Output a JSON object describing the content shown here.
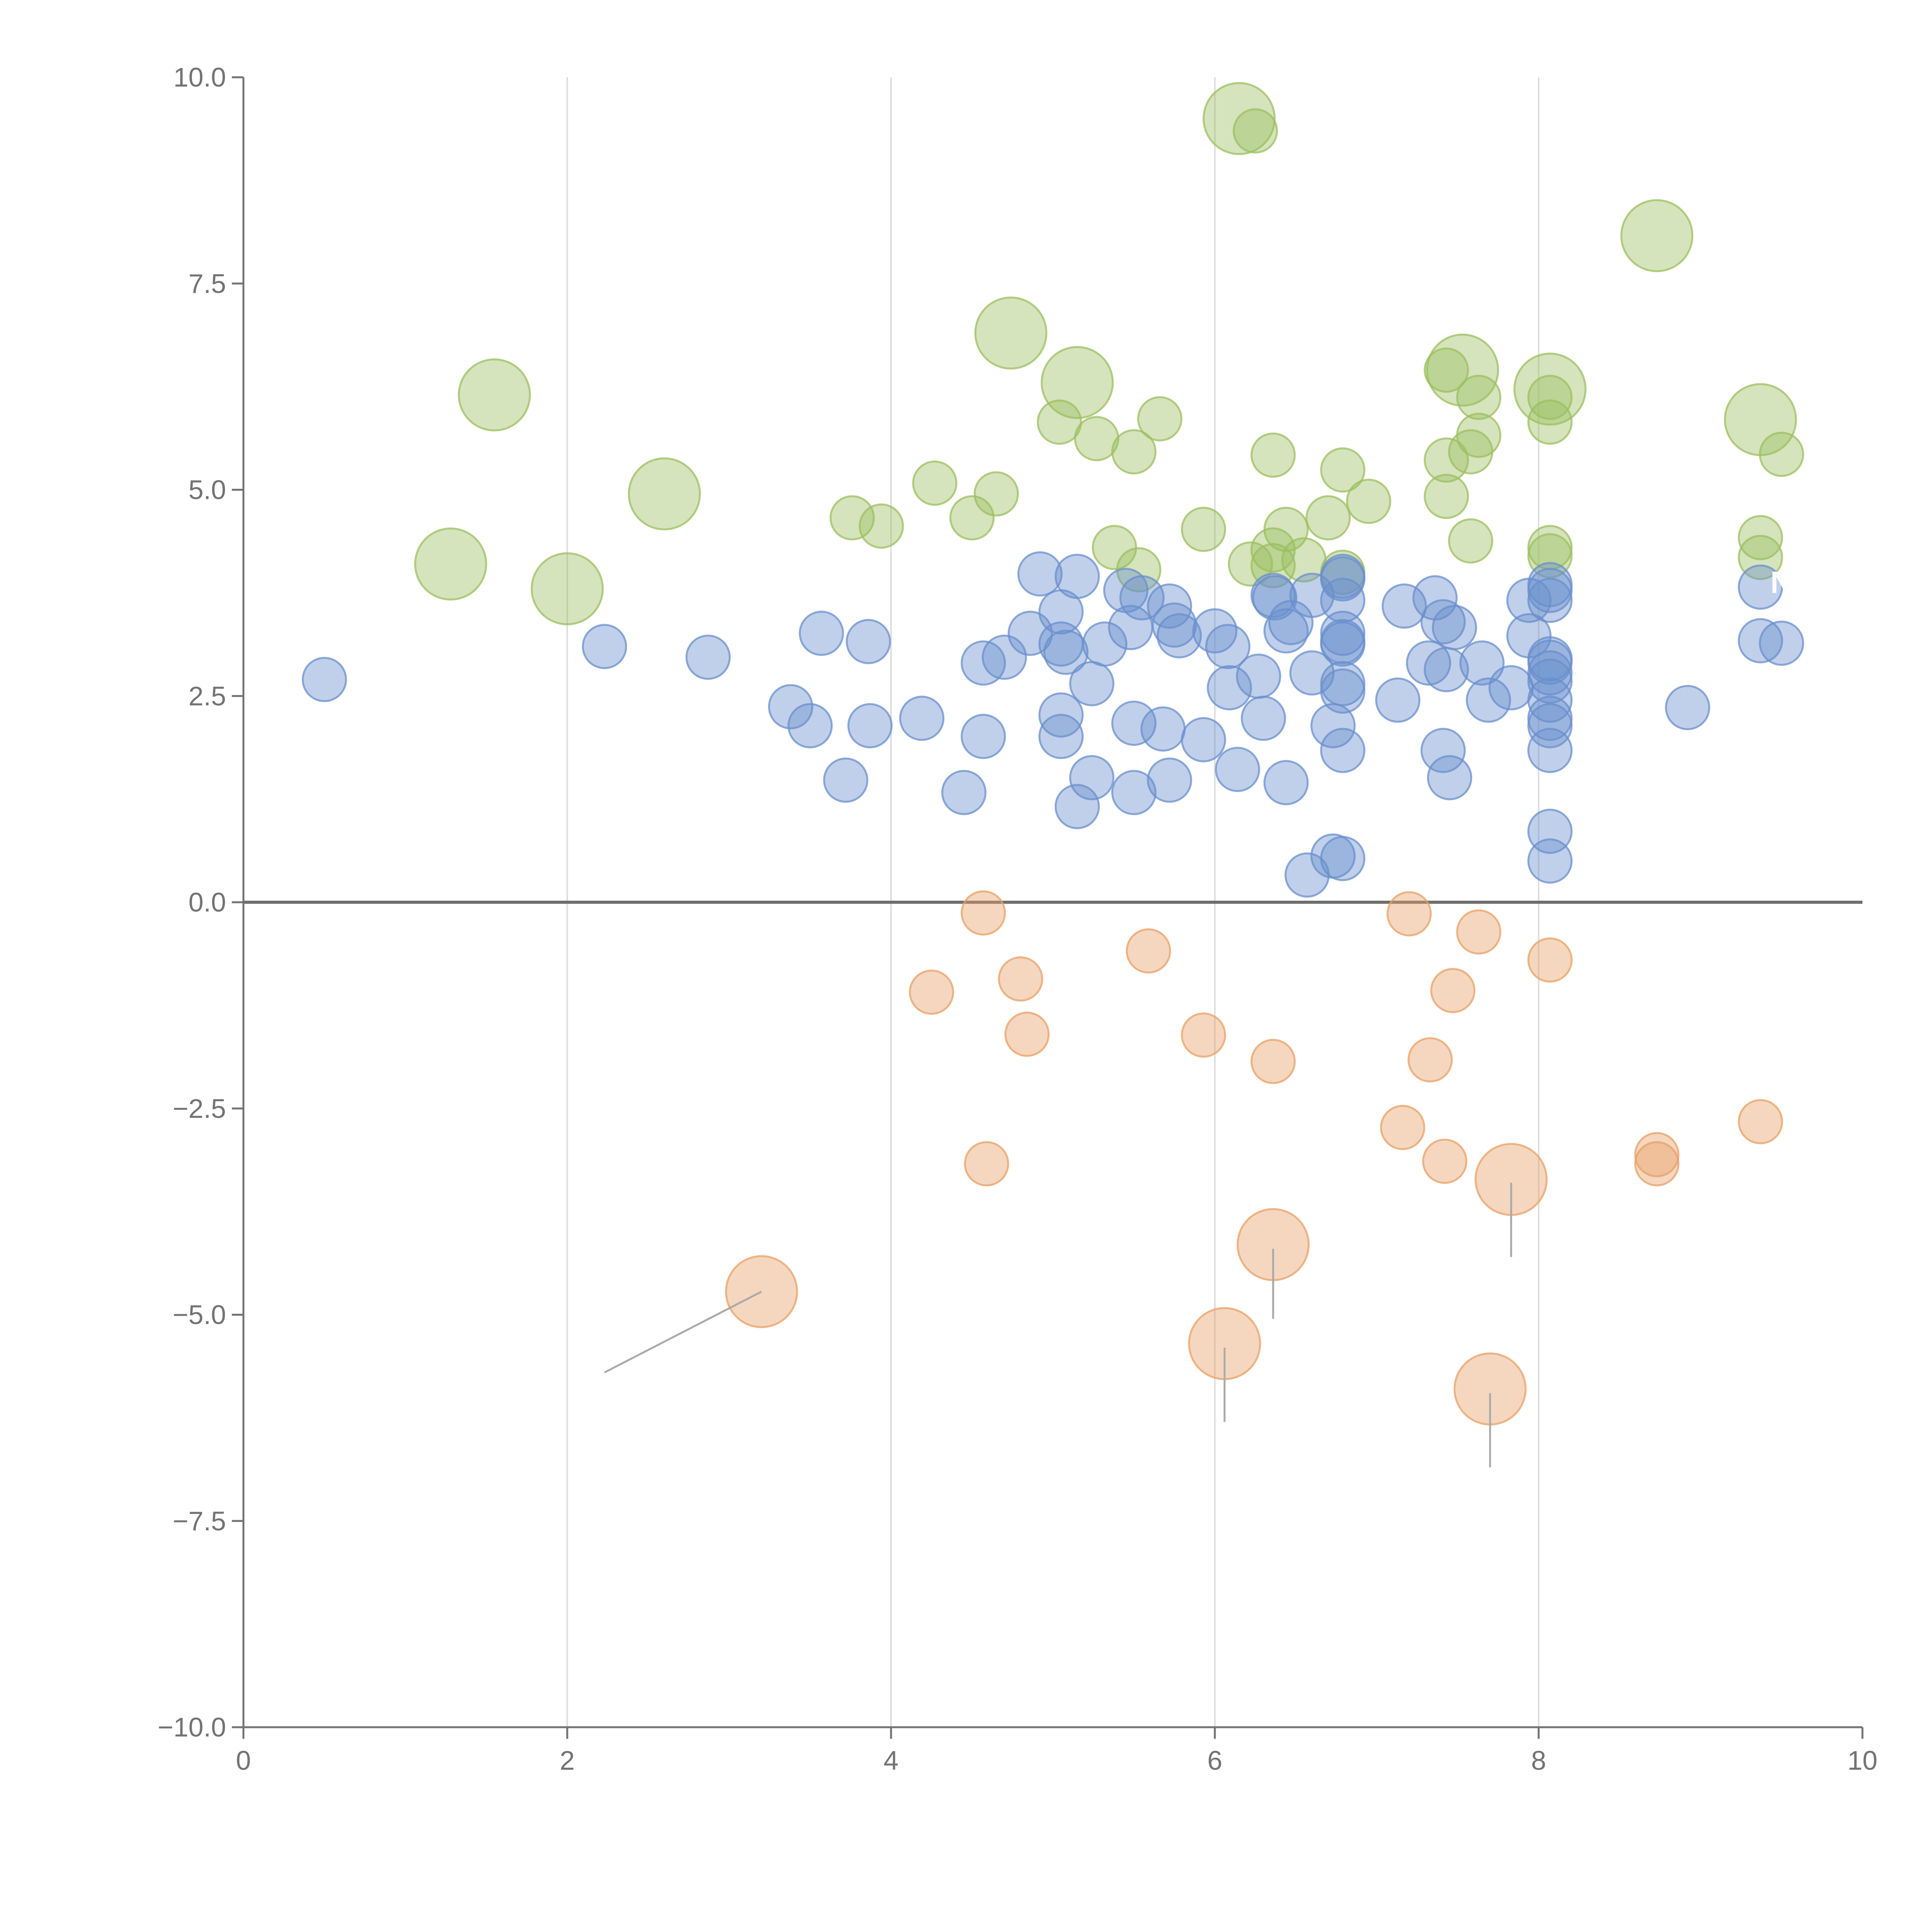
{
  "chart_data": {
    "type": "scatter",
    "title": "",
    "xlabel": "",
    "ylabel": "",
    "xlim": [
      0,
      10
    ],
    "ylim": [
      -10,
      10
    ],
    "x_ticks": [
      0,
      2,
      4,
      6,
      8,
      10
    ],
    "x_tick_labels": [
      "0",
      "2",
      "4",
      "6",
      "8",
      "10"
    ],
    "y_ticks": [
      -10,
      -7.5,
      -5,
      -2.5,
      0,
      2.5,
      5,
      7.5,
      10
    ],
    "y_tick_labels": [
      "−10.0",
      "−7.5",
      "−5.0",
      "−2.5",
      "0.0",
      "2.5",
      "5.0",
      "7.5",
      "10.0"
    ],
    "vertical_gridlines_at": [
      2,
      4,
      6,
      8
    ],
    "zero_line": 0,
    "colors": {
      "green": "#9bbf5f",
      "blue": "#6a8fcc",
      "orange": "#e8a066",
      "axis": "#737373",
      "grid": "#dddddd"
    },
    "annotations": [
      {
        "text": "N",
        "x": 9.5,
        "y": 3.75,
        "color": "#ffffff"
      }
    ],
    "series": [
      {
        "name": "green",
        "color": "#9bbf5f",
        "points": [
          {
            "x": 6.15,
            "y": 9.5,
            "s": 2
          },
          {
            "x": 6.25,
            "y": 9.35,
            "s": 1
          },
          {
            "x": 8.73,
            "y": 8.08,
            "s": 2
          },
          {
            "x": 4.74,
            "y": 6.9,
            "s": 2
          },
          {
            "x": 1.55,
            "y": 6.15,
            "s": 2
          },
          {
            "x": 5.15,
            "y": 6.3,
            "s": 2
          },
          {
            "x": 7.53,
            "y": 6.45,
            "s": 2
          },
          {
            "x": 8.07,
            "y": 6.22,
            "s": 2
          },
          {
            "x": 9.37,
            "y": 5.85,
            "s": 2
          },
          {
            "x": 2.6,
            "y": 4.95,
            "s": 2
          },
          {
            "x": 1.28,
            "y": 4.1,
            "s": 2
          },
          {
            "x": 2.0,
            "y": 3.8,
            "s": 2
          },
          {
            "x": 7.43,
            "y": 6.45,
            "s": 1
          },
          {
            "x": 7.63,
            "y": 6.12,
            "s": 1
          },
          {
            "x": 8.07,
            "y": 6.12,
            "s": 1
          },
          {
            "x": 8.07,
            "y": 5.82,
            "s": 1
          },
          {
            "x": 5.04,
            "y": 5.82,
            "s": 1
          },
          {
            "x": 5.27,
            "y": 5.62,
            "s": 1
          },
          {
            "x": 5.5,
            "y": 5.46,
            "s": 1
          },
          {
            "x": 5.66,
            "y": 5.86,
            "s": 1
          },
          {
            "x": 7.63,
            "y": 5.66,
            "s": 1
          },
          {
            "x": 7.58,
            "y": 5.46,
            "s": 1
          },
          {
            "x": 7.43,
            "y": 5.36,
            "s": 1
          },
          {
            "x": 6.36,
            "y": 5.42,
            "s": 1
          },
          {
            "x": 6.79,
            "y": 5.24,
            "s": 1
          },
          {
            "x": 9.5,
            "y": 5.43,
            "s": 1
          },
          {
            "x": 4.27,
            "y": 5.08,
            "s": 1
          },
          {
            "x": 4.65,
            "y": 4.95,
            "s": 1
          },
          {
            "x": 3.76,
            "y": 4.66,
            "s": 1
          },
          {
            "x": 3.94,
            "y": 4.56,
            "s": 1
          },
          {
            "x": 4.5,
            "y": 4.66,
            "s": 1
          },
          {
            "x": 7.43,
            "y": 4.92,
            "s": 1
          },
          {
            "x": 6.95,
            "y": 4.86,
            "s": 1
          },
          {
            "x": 6.7,
            "y": 4.66,
            "s": 1
          },
          {
            "x": 5.93,
            "y": 4.52,
            "s": 1
          },
          {
            "x": 6.44,
            "y": 4.52,
            "s": 1
          },
          {
            "x": 7.58,
            "y": 4.38,
            "s": 1
          },
          {
            "x": 5.38,
            "y": 4.3,
            "s": 1
          },
          {
            "x": 8.07,
            "y": 4.3,
            "s": 1
          },
          {
            "x": 8.07,
            "y": 4.2,
            "s": 1
          },
          {
            "x": 9.37,
            "y": 4.42,
            "s": 1
          },
          {
            "x": 9.37,
            "y": 4.18,
            "s": 1
          },
          {
            "x": 6.36,
            "y": 4.27,
            "s": 1
          },
          {
            "x": 6.55,
            "y": 4.15,
            "s": 1
          },
          {
            "x": 6.22,
            "y": 4.1,
            "s": 1
          },
          {
            "x": 6.36,
            "y": 4.08,
            "s": 1
          },
          {
            "x": 5.53,
            "y": 4.03,
            "s": 1
          },
          {
            "x": 6.79,
            "y": 4.0,
            "s": 1
          }
        ]
      },
      {
        "name": "blue",
        "color": "#6a8fcc",
        "points": [
          {
            "x": 0.5,
            "y": 2.7,
            "s": 1
          },
          {
            "x": 2.23,
            "y": 3.1,
            "s": 1
          },
          {
            "x": 2.87,
            "y": 2.97,
            "s": 1
          },
          {
            "x": 3.57,
            "y": 3.26,
            "s": 1
          },
          {
            "x": 3.86,
            "y": 3.16,
            "s": 1
          },
          {
            "x": 3.38,
            "y": 2.37,
            "s": 1
          },
          {
            "x": 3.5,
            "y": 2.14,
            "s": 1
          },
          {
            "x": 3.87,
            "y": 2.14,
            "s": 1
          },
          {
            "x": 4.19,
            "y": 2.23,
            "s": 1
          },
          {
            "x": 3.72,
            "y": 1.48,
            "s": 1
          },
          {
            "x": 4.45,
            "y": 1.33,
            "s": 1
          },
          {
            "x": 4.57,
            "y": 2.9,
            "s": 1
          },
          {
            "x": 4.7,
            "y": 2.97,
            "s": 1
          },
          {
            "x": 4.57,
            "y": 2.01,
            "s": 1
          },
          {
            "x": 4.86,
            "y": 3.26,
            "s": 1
          },
          {
            "x": 4.92,
            "y": 3.98,
            "s": 1
          },
          {
            "x": 5.05,
            "y": 3.52,
            "s": 1
          },
          {
            "x": 5.05,
            "y": 3.13,
            "s": 1
          },
          {
            "x": 5.08,
            "y": 3.03,
            "s": 1
          },
          {
            "x": 5.15,
            "y": 3.95,
            "s": 1
          },
          {
            "x": 5.05,
            "y": 2.27,
            "s": 1
          },
          {
            "x": 5.05,
            "y": 2.01,
            "s": 1
          },
          {
            "x": 5.24,
            "y": 2.65,
            "s": 1
          },
          {
            "x": 5.24,
            "y": 1.51,
            "s": 1
          },
          {
            "x": 5.15,
            "y": 1.16,
            "s": 1
          },
          {
            "x": 5.32,
            "y": 3.13,
            "s": 1
          },
          {
            "x": 5.45,
            "y": 3.78,
            "s": 1
          },
          {
            "x": 5.48,
            "y": 3.33,
            "s": 1
          },
          {
            "x": 5.55,
            "y": 3.69,
            "s": 1
          },
          {
            "x": 5.5,
            "y": 2.17,
            "s": 1
          },
          {
            "x": 5.5,
            "y": 1.33,
            "s": 1
          },
          {
            "x": 5.72,
            "y": 3.59,
            "s": 1
          },
          {
            "x": 5.75,
            "y": 3.36,
            "s": 1
          },
          {
            "x": 5.78,
            "y": 3.23,
            "s": 1
          },
          {
            "x": 5.68,
            "y": 2.1,
            "s": 1
          },
          {
            "x": 5.72,
            "y": 1.48,
            "s": 1
          },
          {
            "x": 5.93,
            "y": 1.97,
            "s": 1
          },
          {
            "x": 6.0,
            "y": 3.29,
            "s": 1
          },
          {
            "x": 6.08,
            "y": 3.1,
            "s": 1
          },
          {
            "x": 6.09,
            "y": 2.6,
            "s": 1
          },
          {
            "x": 6.27,
            "y": 2.74,
            "s": 1
          },
          {
            "x": 6.3,
            "y": 2.23,
            "s": 1
          },
          {
            "x": 6.14,
            "y": 1.61,
            "s": 1
          },
          {
            "x": 6.36,
            "y": 3.72,
            "s": 1
          },
          {
            "x": 6.37,
            "y": 3.69,
            "s": 1
          },
          {
            "x": 6.47,
            "y": 3.39,
            "s": 1
          },
          {
            "x": 6.44,
            "y": 3.29,
            "s": 1
          },
          {
            "x": 6.6,
            "y": 3.72,
            "s": 1
          },
          {
            "x": 6.6,
            "y": 2.78,
            "s": 1
          },
          {
            "x": 6.44,
            "y": 1.45,
            "s": 1
          },
          {
            "x": 6.79,
            "y": 3.95,
            "s": 1
          },
          {
            "x": 6.79,
            "y": 3.92,
            "s": 1
          },
          {
            "x": 6.79,
            "y": 3.66,
            "s": 1
          },
          {
            "x": 6.79,
            "y": 3.26,
            "s": 1
          },
          {
            "x": 6.79,
            "y": 3.16,
            "s": 1
          },
          {
            "x": 6.79,
            "y": 3.13,
            "s": 1
          },
          {
            "x": 6.79,
            "y": 2.65,
            "s": 1
          },
          {
            "x": 6.79,
            "y": 2.56,
            "s": 1
          },
          {
            "x": 6.73,
            "y": 2.14,
            "s": 1
          },
          {
            "x": 6.79,
            "y": 1.84,
            "s": 1
          },
          {
            "x": 6.73,
            "y": 0.56,
            "s": 1
          },
          {
            "x": 6.79,
            "y": 0.53,
            "s": 1
          },
          {
            "x": 6.57,
            "y": 0.33,
            "s": 1
          },
          {
            "x": 7.17,
            "y": 3.59,
            "s": 1
          },
          {
            "x": 7.13,
            "y": 2.45,
            "s": 1
          },
          {
            "x": 7.36,
            "y": 3.69,
            "s": 1
          },
          {
            "x": 7.41,
            "y": 3.4,
            "s": 1
          },
          {
            "x": 7.48,
            "y": 3.33,
            "s": 1
          },
          {
            "x": 7.32,
            "y": 2.9,
            "s": 1
          },
          {
            "x": 7.43,
            "y": 2.82,
            "s": 1
          },
          {
            "x": 7.41,
            "y": 1.84,
            "s": 1
          },
          {
            "x": 7.45,
            "y": 1.51,
            "s": 1
          },
          {
            "x": 7.65,
            "y": 2.9,
            "s": 1
          },
          {
            "x": 7.69,
            "y": 2.45,
            "s": 1
          },
          {
            "x": 7.83,
            "y": 2.6,
            "s": 1
          },
          {
            "x": 7.94,
            "y": 3.66,
            "s": 1
          },
          {
            "x": 7.94,
            "y": 3.23,
            "s": 1
          },
          {
            "x": 8.07,
            "y": 3.85,
            "s": 1
          },
          {
            "x": 8.07,
            "y": 3.78,
            "s": 1
          },
          {
            "x": 8.07,
            "y": 3.66,
            "s": 1
          },
          {
            "x": 8.07,
            "y": 2.95,
            "s": 1
          },
          {
            "x": 8.07,
            "y": 2.91,
            "s": 1
          },
          {
            "x": 8.07,
            "y": 2.78,
            "s": 1
          },
          {
            "x": 8.07,
            "y": 2.68,
            "s": 1
          },
          {
            "x": 8.07,
            "y": 2.45,
            "s": 1
          },
          {
            "x": 8.07,
            "y": 2.23,
            "s": 1
          },
          {
            "x": 8.07,
            "y": 2.14,
            "s": 1
          },
          {
            "x": 8.07,
            "y": 1.84,
            "s": 1
          },
          {
            "x": 8.07,
            "y": 0.86,
            "s": 1
          },
          {
            "x": 8.07,
            "y": 0.5,
            "s": 1
          },
          {
            "x": 8.92,
            "y": 2.36,
            "s": 1
          },
          {
            "x": 9.37,
            "y": 3.82,
            "s": 1
          },
          {
            "x": 9.37,
            "y": 3.17,
            "s": 1
          },
          {
            "x": 9.5,
            "y": 3.14,
            "s": 1
          }
        ]
      },
      {
        "name": "orange",
        "color": "#e8a066",
        "points": [
          {
            "x": 4.57,
            "y": -0.13,
            "s": 1
          },
          {
            "x": 4.25,
            "y": -1.09,
            "s": 1
          },
          {
            "x": 4.8,
            "y": -0.93,
            "s": 1
          },
          {
            "x": 4.84,
            "y": -1.6,
            "s": 1
          },
          {
            "x": 4.59,
            "y": -3.17,
            "s": 1
          },
          {
            "x": 5.59,
            "y": -0.59,
            "s": 1
          },
          {
            "x": 5.93,
            "y": -1.61,
            "s": 1
          },
          {
            "x": 6.36,
            "y": -1.93,
            "s": 1
          },
          {
            "x": 7.2,
            "y": -0.14,
            "s": 1
          },
          {
            "x": 7.63,
            "y": -0.36,
            "s": 1
          },
          {
            "x": 7.47,
            "y": -1.07,
            "s": 1
          },
          {
            "x": 7.33,
            "y": -1.91,
            "s": 1
          },
          {
            "x": 7.16,
            "y": -2.73,
            "s": 1
          },
          {
            "x": 7.42,
            "y": -3.14,
            "s": 1
          },
          {
            "x": 8.07,
            "y": -0.7,
            "s": 1
          },
          {
            "x": 8.73,
            "y": -3.06,
            "s": 1
          },
          {
            "x": 8.73,
            "y": -3.17,
            "s": 1
          },
          {
            "x": 9.37,
            "y": -2.66,
            "s": 1
          },
          {
            "x": 7.83,
            "y": -3.36,
            "s": 2
          },
          {
            "x": 6.36,
            "y": -4.15,
            "s": 2
          },
          {
            "x": 3.2,
            "y": -4.72,
            "s": 2
          },
          {
            "x": 6.06,
            "y": -5.35,
            "s": 2
          },
          {
            "x": 7.7,
            "y": -5.9,
            "s": 2
          }
        ]
      }
    ],
    "leader_lines": [
      {
        "x1": 3.2,
        "y1": -4.72,
        "x2": 2.23,
        "y2": -5.7
      },
      {
        "x1": 6.36,
        "y1": -4.2,
        "x2": 6.36,
        "y2": -5.05
      },
      {
        "x1": 7.83,
        "y1": -3.4,
        "x2": 7.83,
        "y2": -4.3
      },
      {
        "x1": 6.06,
        "y1": -5.4,
        "x2": 6.06,
        "y2": -6.3
      },
      {
        "x1": 7.7,
        "y1": -5.95,
        "x2": 7.7,
        "y2": -6.85
      }
    ]
  }
}
